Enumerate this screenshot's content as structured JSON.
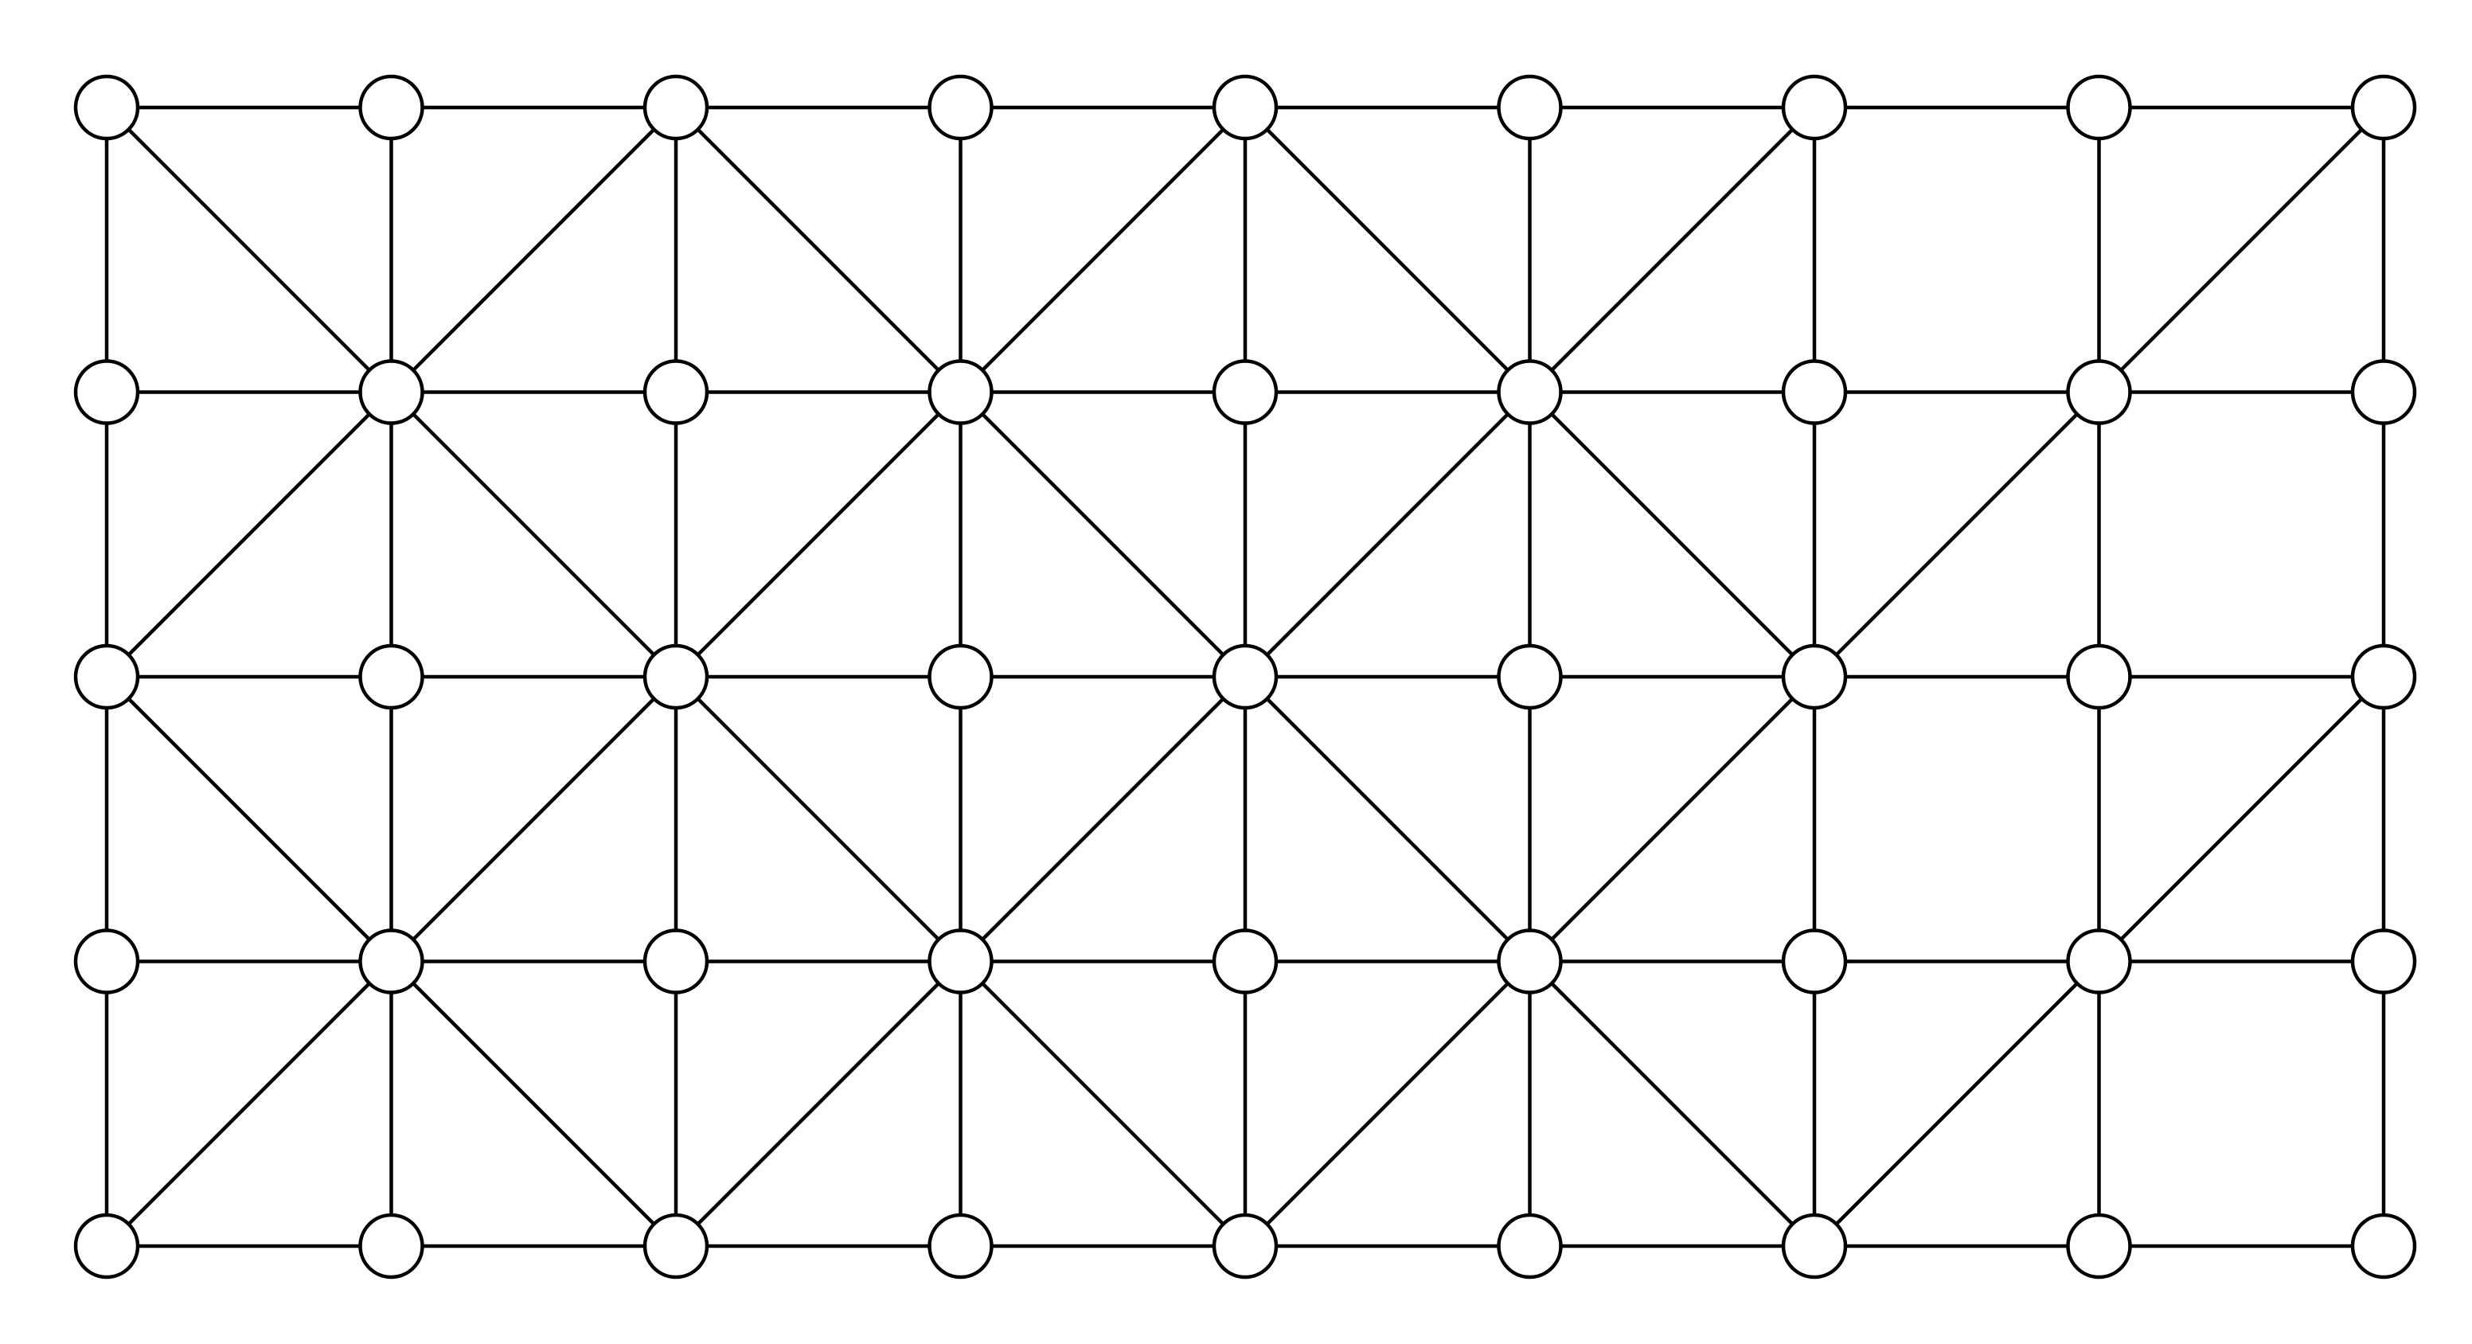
{
  "graph": {
    "type": "grid-graph",
    "rows": 5,
    "columns": 9,
    "node_count": 45,
    "node_fill": "#ffffff",
    "stroke_color": "#000000",
    "background": "#ffffff",
    "grid_edges": true,
    "diagonal_edges": [
      [
        [
          0,
          0
        ],
        [
          1,
          1
        ]
      ],
      [
        [
          0,
          2
        ],
        [
          1,
          1
        ]
      ],
      [
        [
          0,
          2
        ],
        [
          1,
          3
        ]
      ],
      [
        [
          0,
          4
        ],
        [
          1,
          3
        ]
      ],
      [
        [
          0,
          4
        ],
        [
          1,
          5
        ]
      ],
      [
        [
          0,
          6
        ],
        [
          1,
          5
        ]
      ],
      [
        [
          0,
          8
        ],
        [
          1,
          7
        ]
      ],
      [
        [
          1,
          1
        ],
        [
          2,
          0
        ]
      ],
      [
        [
          1,
          1
        ],
        [
          2,
          2
        ]
      ],
      [
        [
          1,
          3
        ],
        [
          2,
          2
        ]
      ],
      [
        [
          1,
          3
        ],
        [
          2,
          4
        ]
      ],
      [
        [
          1,
          5
        ],
        [
          2,
          4
        ]
      ],
      [
        [
          1,
          5
        ],
        [
          2,
          6
        ]
      ],
      [
        [
          1,
          7
        ],
        [
          2,
          6
        ]
      ],
      [
        [
          2,
          0
        ],
        [
          3,
          1
        ]
      ],
      [
        [
          2,
          2
        ],
        [
          3,
          1
        ]
      ],
      [
        [
          2,
          2
        ],
        [
          3,
          3
        ]
      ],
      [
        [
          2,
          4
        ],
        [
          3,
          3
        ]
      ],
      [
        [
          2,
          4
        ],
        [
          3,
          5
        ]
      ],
      [
        [
          2,
          6
        ],
        [
          3,
          5
        ]
      ],
      [
        [
          2,
          8
        ],
        [
          3,
          7
        ]
      ],
      [
        [
          3,
          1
        ],
        [
          4,
          0
        ]
      ],
      [
        [
          3,
          1
        ],
        [
          4,
          2
        ]
      ],
      [
        [
          3,
          3
        ],
        [
          4,
          2
        ]
      ],
      [
        [
          3,
          3
        ],
        [
          4,
          4
        ]
      ],
      [
        [
          3,
          5
        ],
        [
          4,
          4
        ]
      ],
      [
        [
          3,
          5
        ],
        [
          4,
          6
        ]
      ],
      [
        [
          3,
          7
        ],
        [
          4,
          6
        ]
      ]
    ]
  }
}
